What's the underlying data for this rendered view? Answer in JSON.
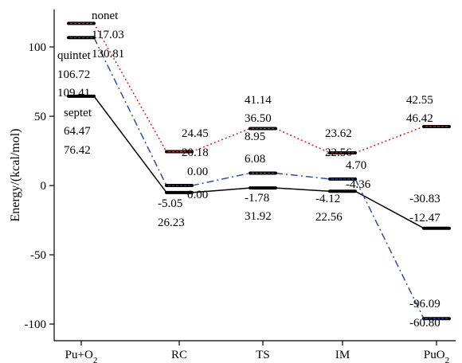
{
  "chart_data": {
    "type": "line",
    "ylabel": "Energy/(kcal/mol)",
    "ylim": [
      -112,
      127
    ],
    "y_ticks": [
      "-100",
      "-50",
      "0",
      "50",
      "100"
    ],
    "y_tick_values": [
      -100,
      -50,
      0,
      50,
      100
    ],
    "categories": [
      "Pu+O",
      "RC",
      "TS",
      "IM",
      "PuO"
    ],
    "category_subscripts": [
      "2",
      "",
      "",
      "",
      "2"
    ],
    "series": [
      {
        "name": "septet",
        "color": "#000000",
        "style": "solid",
        "values": [
          64.47,
          -5.05,
          -1.78,
          -4.12,
          -30.83
        ]
      },
      {
        "name": "quintet",
        "color": "#2a4fb0",
        "style": "dashdot",
        "values": [
          106.72,
          0.0,
          8.95,
          4.7,
          -96.09
        ]
      },
      {
        "name": "nonet",
        "color": "#e02020",
        "style": "dotted",
        "values": [
          117.03,
          24.45,
          41.14,
          23.62,
          42.55
        ]
      }
    ],
    "annotations": [
      {
        "text": "nonet"
      },
      {
        "text": "117.03"
      },
      {
        "text": "130.81"
      },
      {
        "text": "quintet"
      },
      {
        "text": "106.72"
      },
      {
        "text": "109.41"
      },
      {
        "text": "septet"
      },
      {
        "text": "64.47"
      },
      {
        "text": "76.42"
      },
      {
        "text": "24.45"
      },
      {
        "text": "20.18"
      },
      {
        "text": "0.00"
      },
      {
        "text": "0.00"
      },
      {
        "text": "-5.05"
      },
      {
        "text": "26.23"
      },
      {
        "text": "41.14"
      },
      {
        "text": "36.50"
      },
      {
        "text": "8.95"
      },
      {
        "text": "6.08"
      },
      {
        "text": "-1.78"
      },
      {
        "text": "31.92"
      },
      {
        "text": "23.62"
      },
      {
        "text": "22.56"
      },
      {
        "text": "4.70"
      },
      {
        "text": "-4.36"
      },
      {
        "text": "-4.12"
      },
      {
        "text": "22.56"
      },
      {
        "text": "42.55"
      },
      {
        "text": "46.42"
      },
      {
        "text": "-30.83"
      },
      {
        "text": "-12.47"
      },
      {
        "text": "-96.09"
      },
      {
        "text": "-60.80"
      }
    ]
  }
}
